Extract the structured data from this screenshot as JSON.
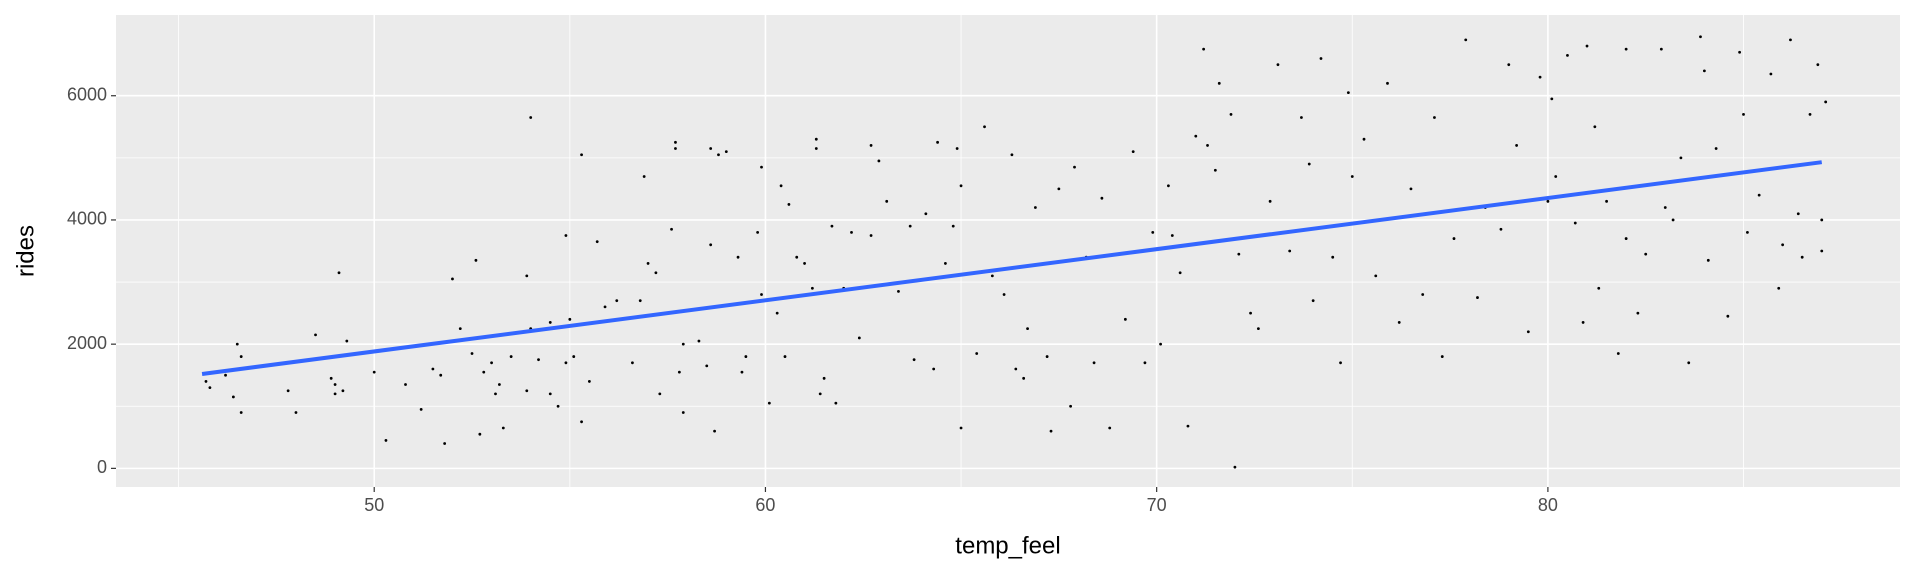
{
  "chart_data": {
    "type": "scatter",
    "x_label": "temp_feel",
    "y_label": "rides",
    "xlim": [
      43.4,
      89.0
    ],
    "ylim": [
      -300,
      7300
    ],
    "xticks": [
      50,
      60,
      70,
      80
    ],
    "yticks": [
      0,
      2000,
      4000,
      6000
    ],
    "x_minor_grid": [
      45,
      55,
      65,
      75,
      85
    ],
    "y_minor_grid": [
      1000,
      3000,
      5000
    ],
    "grid": true,
    "panel_color": "#ebebeb",
    "color": "#000000",
    "x": [
      45.7,
      45.8,
      46.2,
      46.5,
      46.6,
      46.6,
      46.4,
      47.8,
      48.0,
      48.5,
      48.9,
      49.0,
      49.2,
      49.1,
      49.3,
      49.0,
      50.0,
      50.3,
      50.8,
      51.2,
      51.5,
      51.7,
      52.0,
      51.8,
      52.2,
      52.5,
      52.6,
      52.8,
      53.0,
      53.1,
      53.2,
      53.5,
      53.3,
      52.7,
      53.9,
      53.9,
      54.0,
      54.0,
      54.2,
      54.5,
      54.5,
      54.7,
      54.9,
      54.9,
      55.0,
      55.1,
      55.3,
      55.3,
      55.5,
      55.7,
      55.9,
      56.2,
      56.6,
      56.8,
      56.9,
      57.0,
      57.2,
      57.3,
      57.7,
      57.7,
      57.6,
      57.8,
      57.9,
      57.9,
      58.3,
      58.5,
      58.8,
      58.6,
      58.6,
      58.7,
      59.0,
      59.3,
      59.5,
      59.4,
      59.8,
      59.9,
      59.9,
      60.1,
      60.3,
      60.4,
      60.5,
      60.6,
      60.8,
      61.0,
      61.2,
      61.3,
      61.3,
      61.4,
      61.5,
      61.7,
      61.8,
      62.0,
      62.2,
      62.4,
      62.7,
      62.7,
      62.9,
      63.1,
      63.4,
      63.7,
      63.8,
      64.1,
      64.3,
      64.4,
      64.6,
      64.8,
      64.9,
      65.0,
      65.0,
      65.4,
      65.6,
      65.8,
      66.1,
      66.3,
      66.4,
      66.6,
      66.7,
      66.9,
      67.2,
      67.3,
      67.5,
      67.8,
      67.9,
      68.2,
      68.4,
      68.6,
      68.8,
      69.2,
      69.4,
      69.7,
      69.9,
      70.1,
      70.3,
      70.4,
      70.6,
      70.8,
      71.0,
      71.2,
      71.3,
      71.5,
      71.6,
      71.9,
      72.0,
      72.1,
      72.4,
      72.6,
      72.9,
      73.1,
      73.4,
      73.7,
      73.9,
      74.0,
      74.2,
      74.5,
      74.7,
      74.9,
      75.0,
      75.3,
      75.6,
      75.9,
      76.2,
      76.5,
      76.8,
      77.1,
      77.3,
      77.6,
      77.9,
      78.2,
      78.4,
      78.8,
      79.0,
      79.2,
      79.5,
      79.8,
      80.0,
      80.1,
      80.2,
      80.5,
      80.7,
      80.9,
      81.0,
      81.2,
      81.5,
      81.8,
      82.0,
      82.3,
      82.5,
      82.9,
      83.2,
      83.4,
      83.6,
      83.9,
      84.1,
      84.3,
      84.6,
      84.9,
      85.1,
      85.4,
      85.7,
      85.9,
      86.2,
      86.4,
      86.7,
      86.9,
      87.0,
      87.1,
      86.0,
      85.0,
      83.0,
      82.0,
      81.3,
      84.0,
      86.5,
      87.0
    ],
    "values": [
      1400,
      1300,
      1500,
      2000,
      1800,
      900,
      1150,
      1250,
      900,
      2150,
      1450,
      1350,
      1250,
      3150,
      2050,
      1200,
      1550,
      450,
      1350,
      950,
      1600,
      1500,
      3050,
      400,
      2250,
      1850,
      3350,
      1550,
      1700,
      1200,
      1350,
      1800,
      650,
      550,
      1250,
      3100,
      5650,
      2250,
      1750,
      2350,
      1200,
      1000,
      1700,
      3750,
      2400,
      1800,
      5050,
      750,
      1400,
      3650,
      2600,
      2700,
      1700,
      2700,
      4700,
      3300,
      3150,
      1200,
      5150,
      5250,
      3850,
      1550,
      900,
      2000,
      2050,
      1650,
      5050,
      5150,
      3600,
      600,
      5100,
      3400,
      1800,
      1550,
      3800,
      4850,
      2800,
      1050,
      2500,
      4550,
      1800,
      4250,
      3400,
      3300,
      2900,
      5300,
      5150,
      1200,
      1450,
      3900,
      1050,
      2900,
      3800,
      2100,
      3750,
      5200,
      4950,
      4300,
      2850,
      3900,
      1750,
      4100,
      1600,
      5250,
      3300,
      3900,
      5150,
      650,
      4550,
      1850,
      5500,
      3100,
      2800,
      5050,
      1600,
      1450,
      2250,
      4200,
      1800,
      600,
      4500,
      1000,
      4850,
      3400,
      1700,
      4350,
      650,
      2400,
      5100,
      1700,
      3800,
      2000,
      4550,
      3750,
      3150,
      680,
      5350,
      6750,
      5200,
      4800,
      6200,
      5700,
      20,
      3450,
      2500,
      2250,
      4300,
      6500,
      3500,
      5650,
      4900,
      2700,
      6600,
      3400,
      1700,
      6050,
      4700,
      5300,
      3100,
      6200,
      2350,
      4500,
      2800,
      5650,
      1800,
      3700,
      6900,
      2750,
      4200,
      3850,
      6500,
      5200,
      2200,
      6300,
      4300,
      5950,
      4700,
      6650,
      3950,
      2350,
      6800,
      5500,
      4300,
      1850,
      6750,
      2500,
      3450,
      6750,
      4000,
      5000,
      1700,
      6950,
      3350,
      5150,
      2450,
      6700,
      3800,
      4400,
      6350,
      2900,
      6900,
      4100,
      5700,
      6500,
      4000,
      5900,
      3600,
      5700,
      4200,
      3700,
      2900,
      6400,
      3400,
      3500
    ],
    "fit": {
      "x": [
        45.6,
        87.0
      ],
      "values": [
        1520,
        4930
      ],
      "color": "#3366ff"
    }
  }
}
